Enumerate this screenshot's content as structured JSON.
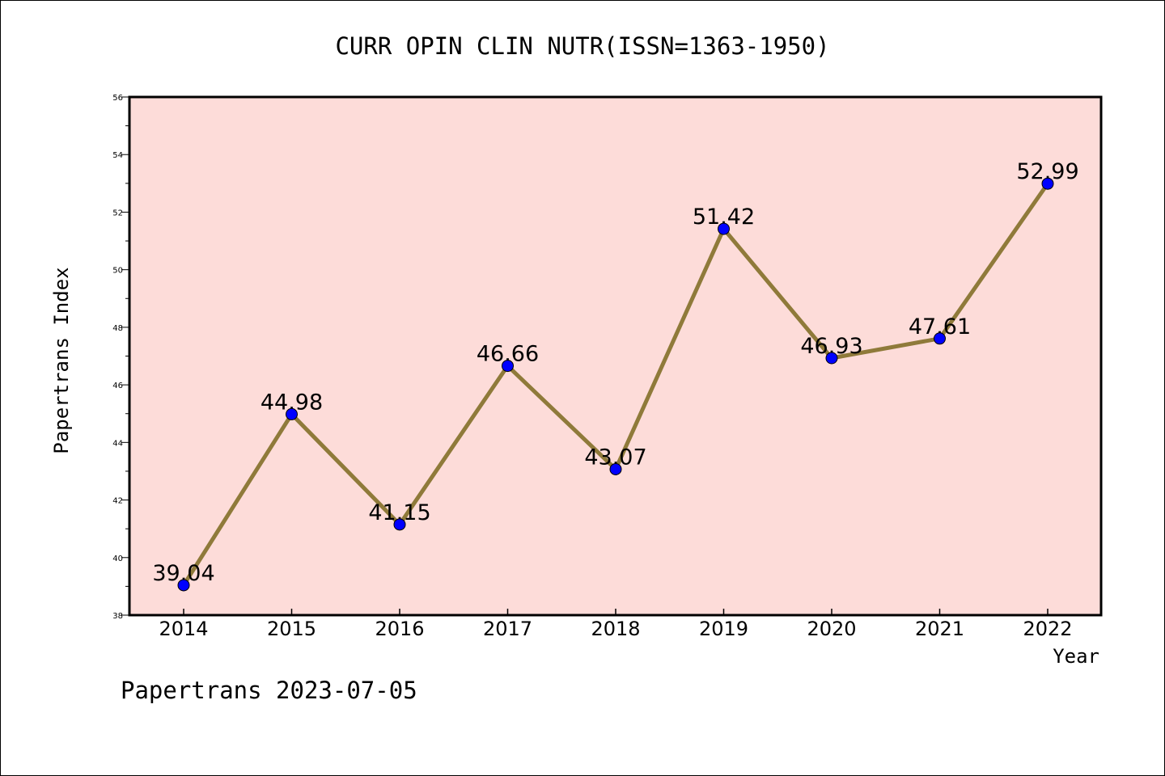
{
  "chart_data": {
    "type": "line",
    "title": "CURR OPIN CLIN NUTR(ISSN=1363-1950)",
    "xlabel": "Year",
    "ylabel": "Papertrans Index",
    "categories": [
      "2014",
      "2015",
      "2016",
      "2017",
      "2018",
      "2019",
      "2020",
      "2021",
      "2022"
    ],
    "series": [
      {
        "values": [
          39.04,
          44.98,
          41.15,
          46.66,
          43.07,
          51.42,
          46.93,
          47.61,
          52.99
        ],
        "data_labels": [
          "39.04",
          "44.98",
          "41.15",
          "46.66",
          "43.07",
          "51.42",
          "46.93",
          "47.61",
          "52.99"
        ]
      }
    ],
    "yticks": [
      "38",
      "40",
      "42",
      "44",
      "46",
      "48",
      "50",
      "52",
      "54",
      "56"
    ],
    "ylim": [
      38,
      56
    ],
    "grid": false,
    "legend": "none",
    "colors": {
      "plot_background": "#fddcd9",
      "line": "#8f7a3a",
      "marker": "#0000ff"
    }
  },
  "footer": {
    "watermark": "Papertrans 2023-07-05"
  }
}
